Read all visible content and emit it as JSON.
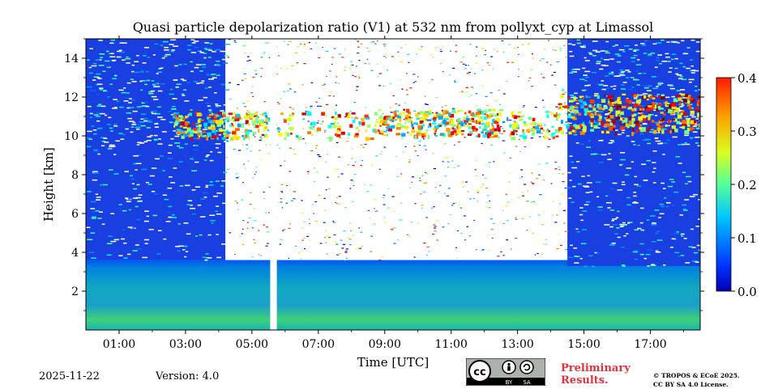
{
  "chart_data": {
    "type": "heatmap",
    "title": "Quasi particle depolarization ratio (V1) at 532 nm from pollyxt_cyp at Limassol",
    "xlabel": "Time [UTC]",
    "ylabel": "Height [km]",
    "xlim": [
      0.0,
      18.5
    ],
    "ylim": [
      0.0,
      15.0
    ],
    "x_ticks": [
      1,
      3,
      5,
      7,
      9,
      11,
      13,
      15,
      17
    ],
    "x_tick_labels": [
      "01:00",
      "03:00",
      "05:00",
      "07:00",
      "09:00",
      "11:00",
      "13:00",
      "15:00",
      "17:00"
    ],
    "y_ticks": [
      2,
      4,
      6,
      8,
      10,
      12,
      14
    ],
    "y_tick_labels": [
      "2",
      "4",
      "6",
      "8",
      "10",
      "12",
      "14"
    ],
    "colorbar": {
      "range": [
        0.0,
        0.4
      ],
      "ticks": [
        0.0,
        0.1,
        0.2,
        0.3,
        0.4
      ],
      "tick_labels": [
        "0.0",
        "0.1",
        "0.2",
        "0.3",
        "0.4"
      ],
      "colormap": "jet"
    },
    "features": [
      {
        "name": "boundary_layer",
        "time_start": 0.0,
        "time_end": 18.5,
        "height_top_km": 3.6,
        "value": 0.1
      },
      {
        "name": "background_noise_night_early",
        "time_start": 0.0,
        "time_end": 4.2,
        "height_range_km": [
          3.6,
          15.0
        ],
        "value": 0.02
      },
      {
        "name": "background_noise_night_late",
        "time_start": 14.5,
        "time_end": 18.5,
        "height_range_km": [
          3.3,
          15.0
        ],
        "value": 0.02
      },
      {
        "name": "cirrus_layer",
        "time_start": 2.6,
        "time_end": 18.5,
        "height_range_km": [
          9.8,
          12.0
        ],
        "value": 0.3
      },
      {
        "name": "data_gap",
        "time_start": 5.55,
        "time_end": 5.75
      }
    ]
  },
  "footer": {
    "date": "2025-11-22",
    "version": "Version: 4.0",
    "preliminary_line1": "Preliminary",
    "preliminary_line2": "Results.",
    "copyright_line1": "© TROPOS & ECoE 2025.",
    "copyright_line2": "CC BY SA 4.0 License.",
    "cc_by": "BY",
    "cc_sa": "SA"
  }
}
